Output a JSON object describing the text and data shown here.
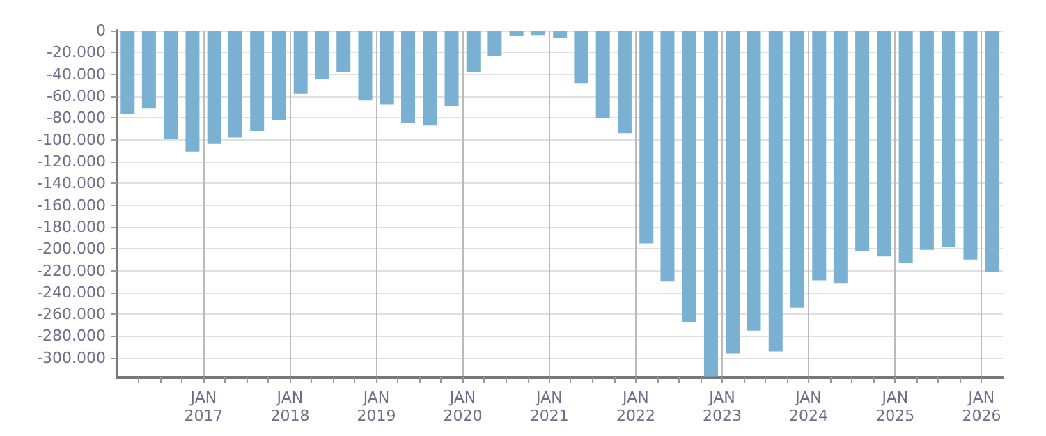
{
  "chart_data": {
    "type": "bar",
    "color": "#7ab1d3",
    "x": [
      "2016-02-15",
      "2016-05-15",
      "2016-08-15",
      "2016-11-15",
      "2017-02-15",
      "2017-05-15",
      "2017-08-15",
      "2017-11-15",
      "2018-02-15",
      "2018-05-15",
      "2018-08-15",
      "2018-11-15",
      "2019-02-15",
      "2019-05-15",
      "2019-08-15",
      "2019-11-15",
      "2020-02-15",
      "2020-05-15",
      "2020-08-15",
      "2020-11-15",
      "2021-02-15",
      "2021-05-15",
      "2021-08-15",
      "2021-11-15",
      "2022-02-15",
      "2022-05-15",
      "2022-08-15",
      "2022-11-15",
      "2023-02-15",
      "2023-05-15",
      "2023-08-15",
      "2023-11-15",
      "2024-02-15",
      "2024-05-15",
      "2024-08-15",
      "2024-11-15",
      "2025-02-15",
      "2025-05-15",
      "2025-08-15",
      "2025-11-15",
      "2026-02-15"
    ],
    "values": [
      -76000,
      -71000,
      -99000,
      -111000,
      -104000,
      -98000,
      -92000,
      -82000,
      -58000,
      -44000,
      -38000,
      -64000,
      -68000,
      -85000,
      -87000,
      -69000,
      -38000,
      -23000,
      -5000,
      -4000,
      -7000,
      -48000,
      -80000,
      -94000,
      -195000,
      -230000,
      -267000,
      -317000,
      -296000,
      -275000,
      -294000,
      -254000,
      -229000,
      -232000,
      -202000,
      -207000,
      -213000,
      -201000,
      -198000,
      -210000,
      -221000
    ],
    "xlim": [
      "2016-01-01",
      "2026-04-01"
    ],
    "xticks": [
      {
        "value": "2016-04-01",
        "label": null
      },
      {
        "value": "2016-07-01",
        "label": null
      },
      {
        "value": "2016-10-01",
        "label": null
      },
      {
        "value": "2017-01-01",
        "label": "JAN\n2017"
      },
      {
        "value": "2017-04-01",
        "label": null
      },
      {
        "value": "2017-07-01",
        "label": null
      },
      {
        "value": "2017-10-01",
        "label": null
      },
      {
        "value": "2018-01-01",
        "label": "JAN\n2018"
      },
      {
        "value": "2018-04-01",
        "label": null
      },
      {
        "value": "2018-07-01",
        "label": null
      },
      {
        "value": "2018-10-01",
        "label": null
      },
      {
        "value": "2019-01-01",
        "label": "JAN\n2019"
      },
      {
        "value": "2019-04-01",
        "label": null
      },
      {
        "value": "2019-07-01",
        "label": null
      },
      {
        "value": "2019-10-01",
        "label": null
      },
      {
        "value": "2020-01-01",
        "label": "JAN\n2020"
      },
      {
        "value": "2020-04-01",
        "label": null
      },
      {
        "value": "2020-07-01",
        "label": null
      },
      {
        "value": "2020-10-01",
        "label": null
      },
      {
        "value": "2021-01-01",
        "label": "JAN\n2021"
      },
      {
        "value": "2021-04-01",
        "label": null
      },
      {
        "value": "2021-07-01",
        "label": null
      },
      {
        "value": "2021-10-01",
        "label": null
      },
      {
        "value": "2022-01-01",
        "label": "JAN\n2022"
      },
      {
        "value": "2022-04-01",
        "label": null
      },
      {
        "value": "2022-07-01",
        "label": null
      },
      {
        "value": "2022-10-01",
        "label": null
      },
      {
        "value": "2023-01-01",
        "label": "JAN\n2023"
      },
      {
        "value": "2023-04-01",
        "label": null
      },
      {
        "value": "2023-07-01",
        "label": null
      },
      {
        "value": "2023-10-01",
        "label": null
      },
      {
        "value": "2024-01-01",
        "label": "JAN\n2024"
      },
      {
        "value": "2024-04-01",
        "label": null
      },
      {
        "value": "2024-07-01",
        "label": null
      },
      {
        "value": "2024-10-01",
        "label": null
      },
      {
        "value": "2025-01-01",
        "label": "JAN\n2025"
      },
      {
        "value": "2025-04-01",
        "label": null
      },
      {
        "value": "2025-07-01",
        "label": null
      },
      {
        "value": "2025-10-01",
        "label": null
      },
      {
        "value": "2026-01-01",
        "label": "JAN\n2026"
      }
    ],
    "ylim": [
      -318000,
      0
    ],
    "yticks": [
      {
        "value": -300000,
        "label": "-300.000"
      },
      {
        "value": -280000,
        "label": "-280.000"
      },
      {
        "value": -260000,
        "label": "-260.000"
      },
      {
        "value": -240000,
        "label": "-240.000"
      },
      {
        "value": -220000,
        "label": "-220.000"
      },
      {
        "value": -200000,
        "label": "-200.000"
      },
      {
        "value": -180000,
        "label": "-180.000"
      },
      {
        "value": -160000,
        "label": "-160.000"
      },
      {
        "value": -140000,
        "label": "-140.000"
      },
      {
        "value": -120000,
        "label": "-120.000"
      },
      {
        "value": -100000,
        "label": "-100.000"
      },
      {
        "value": -80000,
        "label": "-80.000"
      },
      {
        "value": -60000,
        "label": "-60.000"
      },
      {
        "value": -40000,
        "label": "-40.000"
      },
      {
        "value": -20000,
        "label": "-20.000"
      },
      0
    ],
    "grid": true
  }
}
